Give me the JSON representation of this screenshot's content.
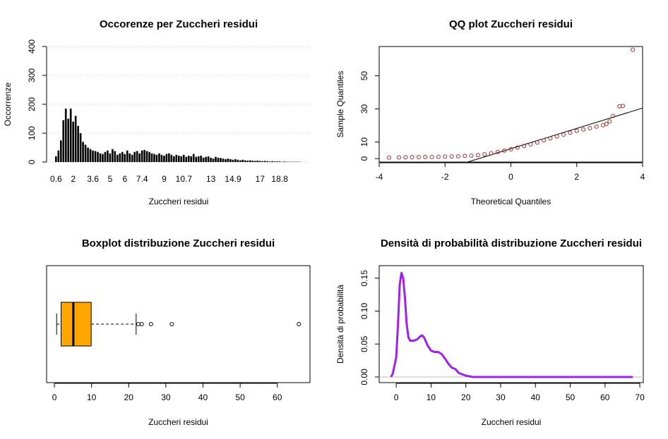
{
  "chart_data": [
    {
      "type": "bar",
      "title": "Occorenze per Zuccheri residui",
      "x_label": "Zuccheri residui",
      "y_label": "Occorrenze",
      "categories": [
        "0.6",
        null,
        null,
        null,
        null,
        null,
        null,
        "2",
        null,
        null,
        null,
        null,
        null,
        null,
        null,
        "3.6",
        null,
        null,
        null,
        null,
        null,
        null,
        "5",
        null,
        null,
        null,
        null,
        null,
        "6",
        null,
        null,
        null,
        null,
        null,
        null,
        "7.4",
        null,
        null,
        null,
        null,
        null,
        null,
        null,
        null,
        "9",
        null,
        null,
        null,
        null,
        null,
        null,
        null,
        "10.7",
        null,
        null,
        null,
        null,
        null,
        null,
        null,
        null,
        null,
        null,
        "13",
        null,
        null,
        null,
        null,
        null,
        null,
        null,
        null,
        "14.9",
        null,
        null,
        null,
        null,
        null,
        null,
        null,
        null,
        null,
        null,
        "17",
        null,
        null,
        null,
        null,
        null,
        null,
        null,
        "18.8",
        null,
        null,
        null,
        null,
        null,
        null,
        null,
        null
      ],
      "values": [
        20,
        40,
        75,
        145,
        185,
        150,
        185,
        140,
        160,
        125,
        100,
        70,
        60,
        50,
        45,
        40,
        38,
        35,
        30,
        28,
        35,
        40,
        30,
        45,
        38,
        25,
        30,
        35,
        28,
        40,
        30,
        25,
        35,
        38,
        30,
        40,
        42,
        38,
        35,
        30,
        28,
        25,
        30,
        25,
        22,
        28,
        30,
        25,
        20,
        25,
        22,
        20,
        25,
        18,
        22,
        20,
        28,
        18,
        20,
        22,
        15,
        18,
        20,
        15,
        12,
        18,
        15,
        14,
        12,
        10,
        12,
        10,
        8,
        10,
        8,
        6,
        8,
        6,
        5,
        6,
        5,
        4,
        5,
        4,
        3,
        4,
        3,
        2,
        3,
        2,
        2,
        2,
        1,
        2,
        1,
        1,
        1,
        1,
        1,
        1
      ],
      "color": "#000000",
      "ylim": [
        0,
        400
      ],
      "yticks": [
        0,
        100,
        200,
        300,
        400
      ],
      "grid": true
    },
    {
      "type": "scatter",
      "title": "QQ plot Zuccheri residui",
      "x_label": "Theoretical Quantiles",
      "y_label": "Sample Quantiles",
      "x": [
        -3.7,
        -3.4,
        -3.2,
        -3.0,
        -2.8,
        -2.6,
        -2.4,
        -2.2,
        -2.0,
        -1.8,
        -1.6,
        -1.4,
        -1.2,
        -1.0,
        -0.8,
        -0.6,
        -0.4,
        -0.2,
        0,
        0.2,
        0.4,
        0.6,
        0.8,
        1.0,
        1.2,
        1.4,
        1.6,
        1.8,
        2.0,
        2.2,
        2.4,
        2.6,
        2.8,
        2.9,
        3.0,
        3.1,
        3.3,
        3.4,
        3.7
      ],
      "values": [
        0.6,
        0.7,
        0.8,
        0.9,
        0.9,
        1.0,
        1.0,
        1.1,
        1.2,
        1.3,
        1.4,
        1.6,
        1.8,
        2.1,
        2.6,
        3.2,
        4.0,
        4.8,
        5.6,
        6.6,
        7.6,
        8.6,
        9.7,
        11,
        12.2,
        13.4,
        14.5,
        15.6,
        16.8,
        17.6,
        18.4,
        19.3,
        20.2,
        21.0,
        22.5,
        25.8,
        31.6,
        31.8,
        65.8
      ],
      "color": "#a52a2a",
      "reference_line": {
        "x": [
          -1.3,
          4
        ],
        "y": [
          -2,
          30.5
        ]
      },
      "xlim": [
        -4,
        4
      ],
      "xticks": [
        -4,
        -2,
        0,
        2,
        4
      ],
      "ylim": [
        -2.1,
        67.7
      ],
      "yticks": [
        0,
        10,
        30,
        50
      ]
    },
    {
      "type": "boxplot",
      "title": "Boxplot distribuzione Zuccheri residui",
      "x_label": "Zuccheri residui",
      "whisker_low": 0.6,
      "q1": 1.8,
      "median": 5.1,
      "q3": 9.9,
      "whisker_high": 22,
      "outliers": [
        22.6,
        23.5,
        26,
        31.6,
        65.8
      ],
      "color": "#ffa500",
      "xlim": [
        -2.1,
        68.8
      ],
      "xticks": [
        0,
        10,
        20,
        30,
        40,
        50,
        60
      ]
    },
    {
      "type": "line",
      "title": "Densità di probabilità distribuzione Zuccheri residui",
      "x_label": "Zuccheri residui",
      "y_label": "Densità di probabilità",
      "x": [
        -1.5,
        -1,
        0,
        0.5,
        1,
        1.5,
        2,
        2.5,
        3,
        3.5,
        4,
        5,
        6,
        7,
        7.5,
        8,
        9,
        10,
        11,
        12,
        13,
        14,
        15,
        16,
        17,
        18,
        19,
        20,
        22,
        30,
        40,
        50,
        60,
        68
      ],
      "values": [
        0,
        0.005,
        0.03,
        0.08,
        0.14,
        0.158,
        0.15,
        0.12,
        0.08,
        0.06,
        0.055,
        0.055,
        0.057,
        0.062,
        0.063,
        0.06,
        0.048,
        0.04,
        0.038,
        0.038,
        0.035,
        0.028,
        0.02,
        0.014,
        0.012,
        0.006,
        0.004,
        0.002,
        0,
        0,
        0,
        0,
        0,
        0
      ],
      "color": "#a020f0",
      "xlim": [
        -4.9,
        71
      ],
      "xticks": [
        0,
        10,
        20,
        30,
        40,
        50,
        60,
        70
      ],
      "ylim": [
        -0.0086,
        0.169
      ],
      "yticks": [
        {
          "value": 0,
          "label": "0.00"
        },
        {
          "value": 0.05,
          "label": "0.05"
        },
        {
          "value": 0.1,
          "label": "0.10"
        },
        {
          "value": 0.15,
          "label": "0.15"
        }
      ]
    }
  ]
}
